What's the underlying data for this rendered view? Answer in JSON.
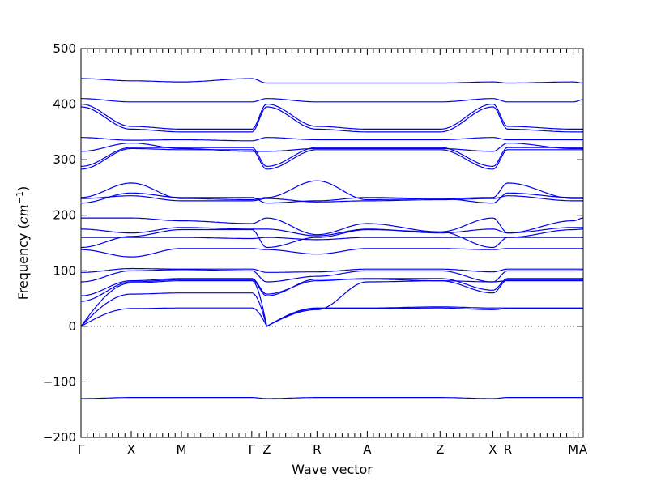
{
  "chart_data": {
    "type": "line",
    "xlabel": "Wave vector",
    "ylabel_prefix": "Frequency (",
    "ylabel_math": "cm",
    "ylabel_sup": "−1",
    "ylabel_suffix": ")",
    "ylim": [
      -200,
      500
    ],
    "yticks": [
      -200,
      -100,
      0,
      100,
      200,
      300,
      400,
      500
    ],
    "ytick_labels": [
      "−200",
      "−100",
      "0",
      "100",
      "200",
      "300",
      "400",
      "500"
    ],
    "path_x": [
      0,
      1,
      2,
      3.4,
      3.7,
      4.7,
      5.7,
      7.15,
      8.2,
      8.5,
      9.8,
      10
    ],
    "path_labels": [
      "Γ",
      "X",
      "M",
      "Γ",
      "Z",
      "R",
      "A",
      "Z",
      "X",
      "R",
      "M",
      "A"
    ],
    "zero_line": true,
    "series": [
      {
        "y": [
          0,
          32,
          33,
          33,
          0,
          32,
          32,
          33,
          30,
          32,
          32,
          32
        ],
        "shape": "acoustic"
      },
      {
        "y": [
          0,
          58,
          60,
          60,
          0,
          33,
          33,
          35,
          33,
          33,
          33,
          33
        ],
        "shape": "acoustic"
      },
      {
        "y": [
          0,
          78,
          82,
          82,
          0,
          30,
          80,
          82,
          80,
          82,
          82,
          82
        ],
        "shape": "acoustic"
      },
      {
        "y": [
          45,
          80,
          84,
          84,
          55,
          85,
          85,
          82,
          60,
          84,
          84,
          84
        ]
      },
      {
        "y": [
          55,
          82,
          86,
          86,
          58,
          82,
          86,
          86,
          65,
          86,
          86,
          86
        ]
      },
      {
        "y": [
          80,
          100,
          102,
          100,
          80,
          90,
          100,
          100,
          80,
          100,
          100,
          100
        ]
      },
      {
        "y": [
          97,
          104,
          103,
          103,
          97,
          98,
          103,
          103,
          98,
          103,
          103,
          103
        ]
      },
      {
        "y": [
          138,
          125,
          140,
          140,
          138,
          130,
          140,
          140,
          138,
          140,
          140,
          140
        ]
      },
      {
        "y": [
          142,
          162,
          174,
          174,
          142,
          160,
          174,
          170,
          142,
          160,
          174,
          175
        ]
      },
      {
        "y": [
          160,
          160,
          160,
          158,
          160,
          156,
          160,
          160,
          160,
          160,
          160,
          160
        ]
      },
      {
        "y": [
          175,
          168,
          178,
          175,
          175,
          163,
          175,
          168,
          175,
          168,
          178,
          178
        ]
      },
      {
        "y": [
          195,
          195,
          190,
          185,
          195,
          165,
          185,
          170,
          195,
          168,
          190,
          195
        ]
      },
      {
        "y": [
          222,
          240,
          232,
          232,
          222,
          226,
          232,
          230,
          222,
          240,
          232,
          232
        ]
      },
      {
        "y": [
          230,
          235,
          226,
          226,
          230,
          224,
          226,
          228,
          230,
          235,
          226,
          226
        ]
      },
      {
        "y": [
          232,
          258,
          230,
          228,
          232,
          262,
          228,
          230,
          232,
          258,
          230,
          230
        ]
      },
      {
        "y": [
          283,
          320,
          318,
          318,
          283,
          318,
          318,
          318,
          283,
          318,
          318,
          318
        ]
      },
      {
        "y": [
          288,
          322,
          322,
          322,
          288,
          322,
          322,
          322,
          288,
          322,
          322,
          322
        ]
      },
      {
        "y": [
          315,
          330,
          320,
          315,
          315,
          320,
          320,
          320,
          315,
          330,
          320,
          320
        ]
      },
      {
        "y": [
          340,
          335,
          336,
          334,
          340,
          336,
          336,
          336,
          340,
          336,
          336,
          336
        ]
      },
      {
        "y": [
          395,
          355,
          350,
          350,
          395,
          355,
          350,
          350,
          395,
          355,
          350,
          350
        ]
      },
      {
        "y": [
          400,
          360,
          355,
          355,
          400,
          360,
          355,
          355,
          400,
          360,
          355,
          355
        ]
      },
      {
        "y": [
          410,
          404,
          404,
          404,
          410,
          404,
          404,
          404,
          410,
          404,
          404,
          408
        ]
      },
      {
        "y": [
          446,
          442,
          440,
          446,
          438,
          438,
          438,
          438,
          440,
          438,
          440,
          438
        ]
      },
      {
        "y": [
          -130,
          -128,
          -128,
          -128,
          -130,
          -128,
          -128,
          -128,
          -130,
          -128,
          -128,
          -128
        ]
      }
    ]
  }
}
